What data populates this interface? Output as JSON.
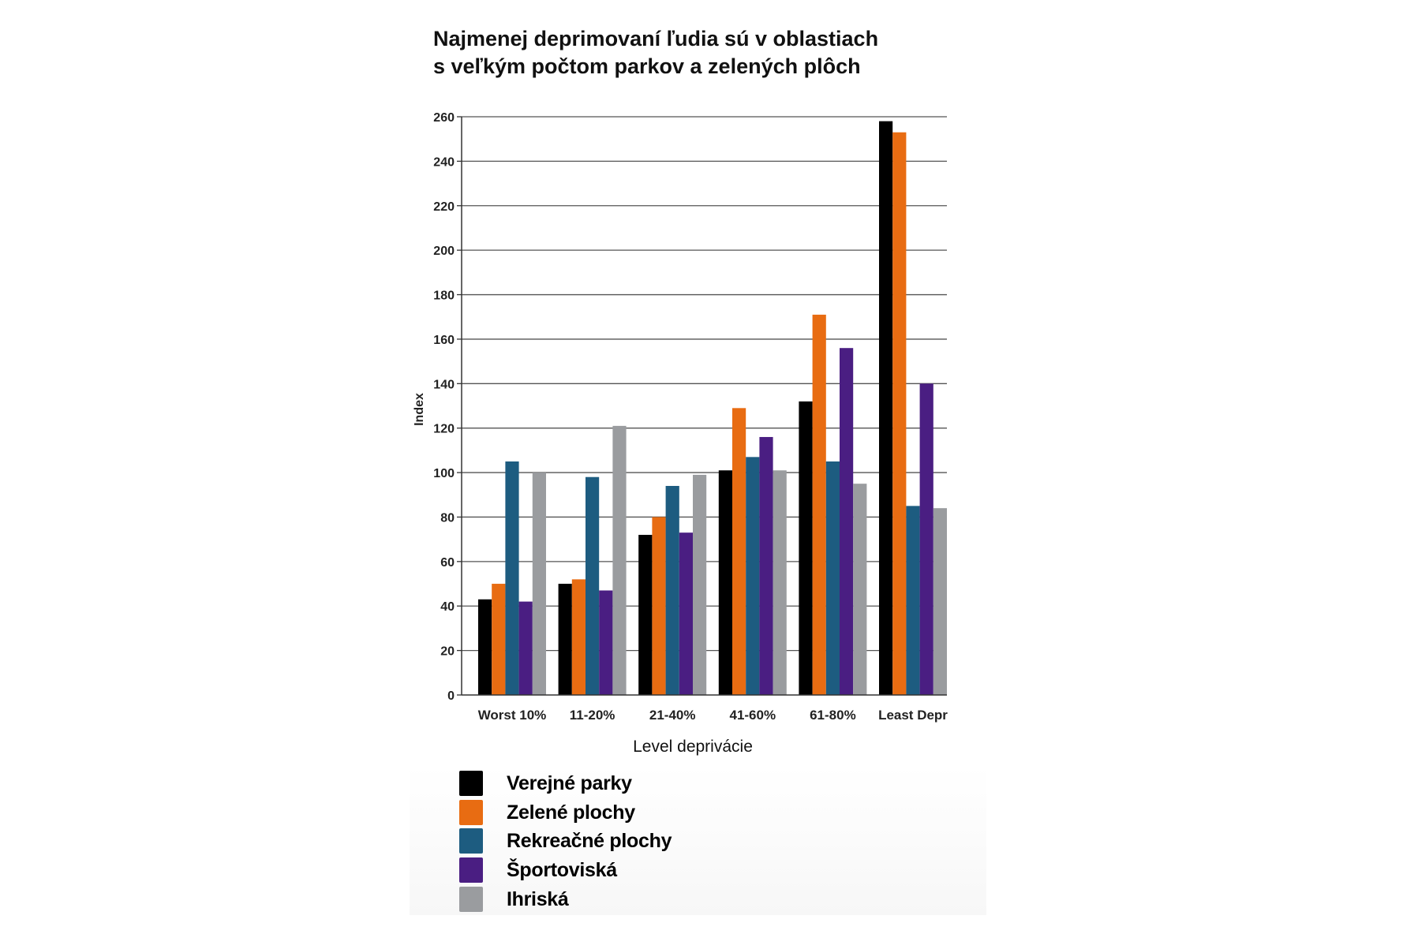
{
  "chart_data": {
    "type": "bar",
    "title_lines": [
      "Najmenej deprimovaní ľudia sú v oblastiach",
      "s veľkým počtom parkov a zelených plôch"
    ],
    "xlabel": "Level deprivácie",
    "ylabel": "Index",
    "ylim": [
      0,
      260
    ],
    "yticks": [
      0,
      20,
      40,
      60,
      80,
      100,
      120,
      140,
      160,
      180,
      200,
      220,
      240,
      260
    ],
    "grid": true,
    "legend_position": "bottom-left",
    "categories": [
      "Worst 10%",
      "11-20%",
      "21-40%",
      "41-60%",
      "61-80%",
      "Least Depr"
    ],
    "series": [
      {
        "name": "Verejné parky",
        "color": "#000000",
        "values": [
          43,
          50,
          72,
          101,
          132,
          258
        ]
      },
      {
        "name": "Zelené plochy",
        "color": "#e86c12",
        "values": [
          50,
          52,
          80,
          129,
          171,
          253
        ]
      },
      {
        "name": "Rekreačné plochy",
        "color": "#1d5c80",
        "values": [
          105,
          98,
          94,
          107,
          105,
          85
        ]
      },
      {
        "name": "Športoviská",
        "color": "#4a1e82",
        "values": [
          42,
          47,
          73,
          116,
          156,
          140
        ]
      },
      {
        "name": "Ihriská",
        "color": "#9a9c9f",
        "values": [
          100,
          121,
          99,
          101,
          95,
          84
        ]
      }
    ]
  }
}
